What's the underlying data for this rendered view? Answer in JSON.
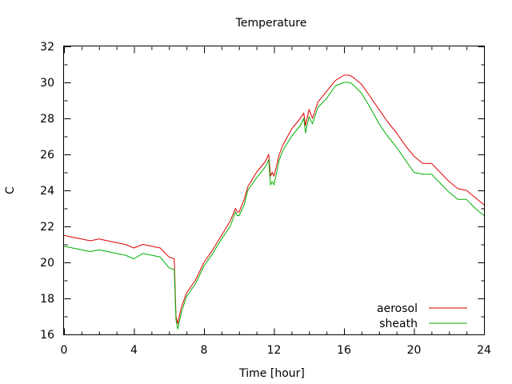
{
  "chart_data": {
    "type": "line",
    "title": "Temperature",
    "xlabel": "Time [hour]",
    "ylabel": "C",
    "xlim": [
      0,
      24
    ],
    "ylim": [
      16,
      32
    ],
    "xticks": [
      0,
      4,
      8,
      12,
      16,
      20,
      24
    ],
    "yticks": [
      16,
      18,
      20,
      22,
      24,
      26,
      28,
      30,
      32
    ],
    "grid": false,
    "legend": "bottom-right",
    "series": [
      {
        "name": "aerosol",
        "color": "#e00000",
        "x": [
          0,
          0.5,
          1,
          1.5,
          2,
          2.5,
          3,
          3.5,
          4,
          4.5,
          5,
          5.5,
          6,
          6.3,
          6.4,
          6.5,
          6.7,
          7,
          7.5,
          8,
          8.5,
          9,
          9.5,
          9.8,
          9.9,
          10,
          10.3,
          10.5,
          11,
          11.5,
          11.7,
          11.8,
          11.9,
          12,
          12.3,
          12.5,
          13,
          13.5,
          13.7,
          13.8,
          14,
          14.2,
          14.5,
          15,
          15.5,
          16,
          16.3,
          16.5,
          17,
          17.5,
          18,
          18.5,
          19,
          19.5,
          20,
          20.5,
          21,
          21.5,
          22,
          22.5,
          23,
          23.5,
          24
        ],
        "y": [
          21.5,
          21.4,
          21.3,
          21.2,
          21.3,
          21.2,
          21.1,
          21.0,
          20.8,
          21.0,
          20.9,
          20.8,
          20.3,
          20.2,
          17.0,
          16.6,
          17.5,
          18.3,
          19.0,
          20.0,
          20.7,
          21.5,
          22.3,
          23.0,
          22.8,
          22.8,
          23.5,
          24.2,
          25.0,
          25.6,
          26.0,
          24.8,
          25.0,
          24.8,
          26.0,
          26.5,
          27.4,
          28.0,
          28.3,
          27.6,
          28.5,
          28.0,
          28.9,
          29.5,
          30.1,
          30.4,
          30.4,
          30.3,
          29.9,
          29.2,
          28.5,
          27.8,
          27.2,
          26.5,
          25.9,
          25.5,
          25.5,
          25.0,
          24.5,
          24.1,
          24.0,
          23.6,
          23.2
        ]
      },
      {
        "name": "sheath",
        "color": "#00b000",
        "x": [
          0,
          0.5,
          1,
          1.5,
          2,
          2.5,
          3,
          3.5,
          4,
          4.5,
          5,
          5.5,
          6,
          6.3,
          6.4,
          6.5,
          6.7,
          7,
          7.5,
          8,
          8.5,
          9,
          9.5,
          9.8,
          9.9,
          10,
          10.3,
          10.5,
          11,
          11.5,
          11.7,
          11.8,
          11.9,
          12,
          12.3,
          12.5,
          13,
          13.5,
          13.7,
          13.8,
          14,
          14.2,
          14.5,
          15,
          15.5,
          16,
          16.3,
          16.5,
          17,
          17.5,
          18,
          18.5,
          19,
          19.5,
          20,
          20.5,
          21,
          21.5,
          22,
          22.5,
          23,
          23.5,
          24
        ],
        "y": [
          20.9,
          20.8,
          20.7,
          20.6,
          20.7,
          20.6,
          20.5,
          20.4,
          20.2,
          20.5,
          20.4,
          20.3,
          19.7,
          19.6,
          16.8,
          16.3,
          17.2,
          18.1,
          18.8,
          19.8,
          20.5,
          21.3,
          22.0,
          22.8,
          22.6,
          22.6,
          23.2,
          24.0,
          24.7,
          25.3,
          25.7,
          24.3,
          24.5,
          24.3,
          25.7,
          26.2,
          27.0,
          27.6,
          28.0,
          27.2,
          28.1,
          27.7,
          28.6,
          29.1,
          29.8,
          30.0,
          30.0,
          29.9,
          29.4,
          28.6,
          27.7,
          27.0,
          26.4,
          25.7,
          25.0,
          24.9,
          24.9,
          24.4,
          23.9,
          23.5,
          23.5,
          23.0,
          22.6
        ]
      }
    ]
  }
}
